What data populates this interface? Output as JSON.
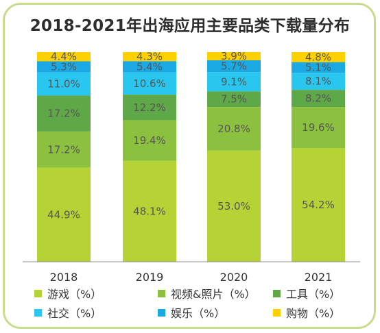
{
  "title": "2018-2021年出海应用主要品类下载量分布",
  "chart_data": {
    "type": "bar",
    "stacked": true,
    "categories": [
      "2018",
      "2019",
      "2020",
      "2021"
    ],
    "ylim": [
      0,
      100
    ],
    "legend_position": "bottom",
    "grid": false,
    "series": [
      {
        "name": "游戏（%）",
        "color": "#b5d334",
        "values": [
          44.9,
          48.1,
          53.0,
          54.2
        ],
        "labels": [
          "44.9%",
          "48.1%",
          "53.0%",
          "54.2%"
        ]
      },
      {
        "name": "视频&照片（%）",
        "color": "#8cc13f",
        "values": [
          17.2,
          19.4,
          20.8,
          19.6
        ],
        "labels": [
          "17.2%",
          "19.4%",
          "20.8%",
          "19.6%"
        ]
      },
      {
        "name": "工具（%）",
        "color": "#5fa848",
        "values": [
          17.2,
          12.2,
          7.5,
          8.2
        ],
        "labels": [
          "17.2%",
          "12.2%",
          "7.5%",
          "8.2%"
        ]
      },
      {
        "name": "社交（%）",
        "color": "#29c6ef",
        "values": [
          11.0,
          10.6,
          9.1,
          8.1
        ],
        "labels": [
          "11.0%",
          "10.6%",
          "9.1%",
          "8.1%"
        ]
      },
      {
        "name": "娱乐（%）",
        "color": "#1aa9e3",
        "values": [
          5.3,
          5.4,
          5.7,
          5.1
        ],
        "labels": [
          "5.3%",
          "5.4%",
          "5.7%",
          "5.1%"
        ]
      },
      {
        "name": "购物（%）",
        "color": "#fdd000",
        "values": [
          4.4,
          4.3,
          3.9,
          4.8
        ],
        "labels": [
          "4.4%",
          "4.3%",
          "3.9%",
          "4.8%"
        ]
      }
    ]
  }
}
